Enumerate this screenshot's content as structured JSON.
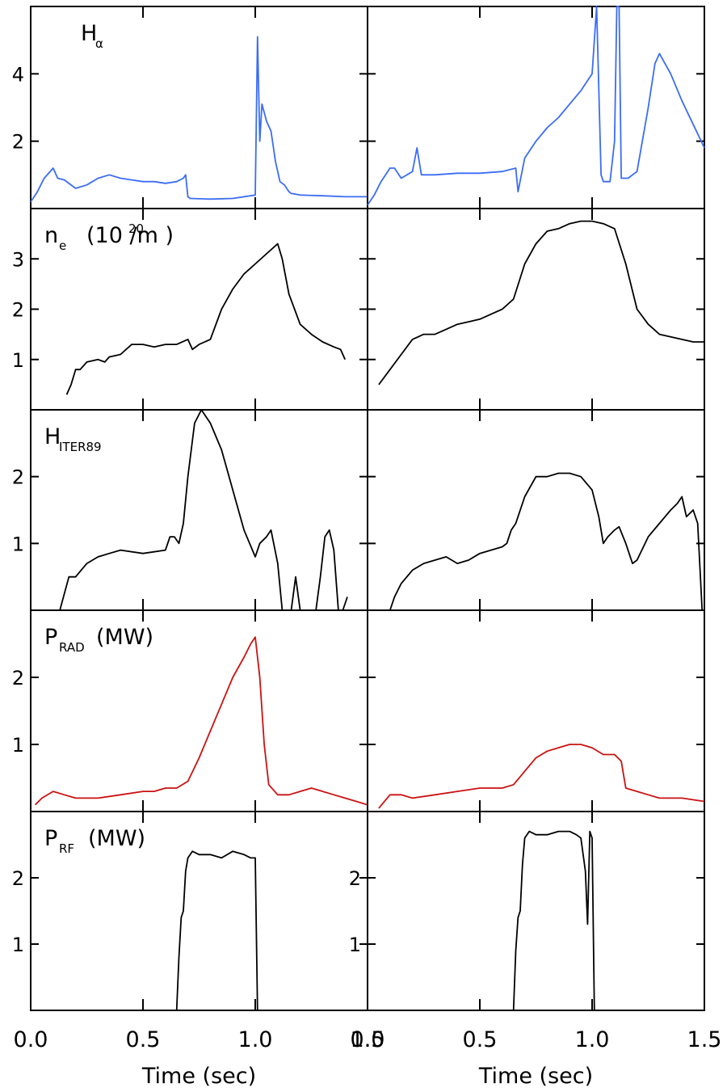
{
  "chart_data": {
    "type": "line",
    "layout": "5 rows x 2 columns, shared x axis per column",
    "x_range": [
      0.0,
      1.5
    ],
    "x_ticks": [
      "0.0",
      "0.5",
      "1.0",
      "1.5"
    ],
    "x_axis_title": "Time (sec)",
    "overlap_tick_label": "1.5",
    "rows": [
      {
        "id": "halpha",
        "label": "H",
        "subscript": "α",
        "superscript": "",
        "label_rest": "",
        "color": "#3b6cf5",
        "ylim": [
          0,
          6.0
        ],
        "yticks": [
          2,
          4
        ],
        "ytick_labels": [
          "2",
          "4"
        ],
        "left": {
          "x": [
            0.0,
            0.03,
            0.06,
            0.1,
            0.12,
            0.15,
            0.2,
            0.25,
            0.3,
            0.35,
            0.4,
            0.45,
            0.5,
            0.55,
            0.6,
            0.65,
            0.68,
            0.69,
            0.7,
            0.71,
            0.8,
            0.9,
            1.0,
            1.01,
            1.02,
            1.03,
            1.05,
            1.07,
            1.09,
            1.11,
            1.13,
            1.15,
            1.16,
            1.2,
            1.3,
            1.4,
            1.5
          ],
          "y": [
            0.2,
            0.5,
            0.9,
            1.2,
            0.9,
            0.85,
            0.6,
            0.7,
            0.9,
            1.0,
            0.9,
            0.85,
            0.8,
            0.8,
            0.75,
            0.8,
            0.9,
            1.0,
            0.35,
            0.3,
            0.28,
            0.3,
            0.4,
            5.1,
            2.0,
            3.1,
            2.6,
            2.3,
            1.4,
            0.8,
            0.7,
            0.5,
            0.45,
            0.4,
            0.38,
            0.35,
            0.35
          ]
        },
        "right": {
          "x": [
            0.0,
            0.03,
            0.06,
            0.1,
            0.12,
            0.15,
            0.2,
            0.22,
            0.24,
            0.27,
            0.3,
            0.4,
            0.5,
            0.6,
            0.66,
            0.67,
            0.7,
            0.75,
            0.8,
            0.85,
            0.9,
            0.95,
            1.0,
            1.02,
            1.04,
            1.05,
            1.08,
            1.1,
            1.11,
            1.12,
            1.13,
            1.16,
            1.2,
            1.25,
            1.28,
            1.3,
            1.35,
            1.4,
            1.45,
            1.5
          ],
          "y": [
            0.1,
            0.4,
            0.8,
            1.2,
            1.2,
            0.9,
            1.1,
            1.8,
            1.0,
            1.0,
            1.0,
            1.05,
            1.05,
            1.1,
            1.2,
            0.5,
            1.5,
            2.0,
            2.4,
            2.7,
            3.1,
            3.5,
            4.0,
            6.0,
            1.0,
            0.8,
            0.8,
            2.0,
            6.0,
            6.0,
            0.9,
            0.9,
            1.1,
            3.0,
            4.3,
            4.6,
            4.0,
            3.2,
            2.5,
            1.8
          ]
        }
      },
      {
        "id": "ne",
        "label": "n",
        "subscript": "e",
        "superscript": "20",
        "label_rest": "(10 /m )",
        "color": "#000000",
        "ylim": [
          0,
          4.0
        ],
        "yticks": [
          1,
          2,
          3
        ],
        "ytick_labels": [
          "1",
          "2",
          "3"
        ],
        "left": {
          "x": [
            0.16,
            0.18,
            0.2,
            0.22,
            0.25,
            0.3,
            0.33,
            0.35,
            0.4,
            0.45,
            0.5,
            0.55,
            0.6,
            0.65,
            0.7,
            0.72,
            0.75,
            0.8,
            0.85,
            0.9,
            0.95,
            1.0,
            1.05,
            1.1,
            1.12,
            1.15,
            1.2,
            1.25,
            1.3,
            1.35,
            1.38,
            1.4
          ],
          "y": [
            0.3,
            0.5,
            0.8,
            0.8,
            0.95,
            1.0,
            0.95,
            1.05,
            1.1,
            1.3,
            1.3,
            1.25,
            1.3,
            1.3,
            1.4,
            1.2,
            1.3,
            1.4,
            2.0,
            2.4,
            2.7,
            2.9,
            3.1,
            3.3,
            3.0,
            2.3,
            1.7,
            1.5,
            1.35,
            1.25,
            1.2,
            1.0
          ]
        },
        "right": {
          "x": [
            0.05,
            0.1,
            0.15,
            0.2,
            0.25,
            0.3,
            0.35,
            0.4,
            0.45,
            0.5,
            0.55,
            0.6,
            0.65,
            0.7,
            0.75,
            0.8,
            0.85,
            0.9,
            0.95,
            1.0,
            1.05,
            1.1,
            1.15,
            1.2,
            1.25,
            1.3,
            1.35,
            1.4,
            1.45,
            1.5
          ],
          "y": [
            0.5,
            0.8,
            1.1,
            1.4,
            1.5,
            1.5,
            1.6,
            1.7,
            1.75,
            1.8,
            1.9,
            2.0,
            2.2,
            2.9,
            3.3,
            3.55,
            3.6,
            3.7,
            3.75,
            3.75,
            3.7,
            3.6,
            2.9,
            2.0,
            1.7,
            1.5,
            1.45,
            1.4,
            1.35,
            1.35
          ]
        }
      },
      {
        "id": "hiter",
        "label": "H",
        "subscript": "ITER89",
        "superscript": "",
        "label_rest": "",
        "color": "#000000",
        "ylim": [
          0,
          3.0
        ],
        "yticks": [
          1,
          2
        ],
        "ytick_labels": [
          "1",
          "2"
        ],
        "left": {
          "x": [
            0.13,
            0.17,
            0.2,
            0.25,
            0.3,
            0.35,
            0.4,
            0.5,
            0.6,
            0.62,
            0.64,
            0.66,
            0.68,
            0.7,
            0.73,
            0.76,
            0.8,
            0.85,
            0.9,
            0.95,
            1.0,
            1.02,
            1.05,
            1.07,
            1.1,
            1.12,
            1.14,
            1.16,
            1.18,
            1.2,
            1.22,
            1.25,
            1.27,
            1.29,
            1.31,
            1.33,
            1.35,
            1.37,
            1.39,
            1.41
          ],
          "y": [
            0.0,
            0.5,
            0.5,
            0.7,
            0.8,
            0.85,
            0.9,
            0.85,
            0.9,
            1.1,
            1.1,
            1.0,
            1.3,
            2.0,
            2.8,
            3.0,
            2.8,
            2.4,
            1.8,
            1.2,
            0.8,
            1.0,
            1.1,
            1.2,
            0.7,
            0.0,
            0.0,
            0.0,
            0.5,
            0.0,
            0.0,
            0.0,
            0.0,
            0.5,
            1.1,
            1.2,
            0.9,
            0.0,
            0.0,
            0.2
          ]
        },
        "right": {
          "x": [
            0.1,
            0.12,
            0.15,
            0.2,
            0.25,
            0.3,
            0.35,
            0.4,
            0.45,
            0.5,
            0.55,
            0.6,
            0.62,
            0.64,
            0.66,
            0.7,
            0.75,
            0.8,
            0.85,
            0.9,
            0.95,
            1.0,
            1.03,
            1.05,
            1.07,
            1.1,
            1.12,
            1.15,
            1.18,
            1.2,
            1.25,
            1.3,
            1.35,
            1.38,
            1.4,
            1.42,
            1.45,
            1.47,
            1.49
          ],
          "y": [
            0.0,
            0.2,
            0.4,
            0.6,
            0.7,
            0.75,
            0.8,
            0.7,
            0.75,
            0.85,
            0.9,
            0.95,
            1.0,
            1.2,
            1.3,
            1.7,
            2.0,
            2.0,
            2.05,
            2.05,
            2.0,
            1.8,
            1.4,
            1.0,
            1.1,
            1.2,
            1.25,
            1.0,
            0.7,
            0.75,
            1.1,
            1.3,
            1.5,
            1.6,
            1.7,
            1.4,
            1.5,
            1.3,
            0.0
          ]
        }
      },
      {
        "id": "prad",
        "label": "P",
        "subscript": "RAD",
        "superscript": "",
        "label_rest": "(MW)",
        "color": "#cc1111",
        "ylim": [
          0,
          3.0
        ],
        "yticks": [
          1,
          2
        ],
        "ytick_labels": [
          "1",
          "2"
        ],
        "left": {
          "x": [
            0.02,
            0.05,
            0.1,
            0.15,
            0.2,
            0.3,
            0.4,
            0.5,
            0.55,
            0.6,
            0.65,
            0.7,
            0.75,
            0.8,
            0.85,
            0.9,
            0.95,
            0.98,
            1.0,
            1.02,
            1.04,
            1.06,
            1.1,
            1.15,
            1.2,
            1.25,
            1.3,
            1.35,
            1.4,
            1.45,
            1.5
          ],
          "y": [
            0.1,
            0.2,
            0.3,
            0.25,
            0.2,
            0.2,
            0.25,
            0.3,
            0.3,
            0.35,
            0.35,
            0.45,
            0.8,
            1.2,
            1.6,
            2.0,
            2.3,
            2.5,
            2.6,
            2.0,
            1.0,
            0.4,
            0.25,
            0.25,
            0.3,
            0.35,
            0.3,
            0.25,
            0.2,
            0.15,
            0.1
          ]
        },
        "right": {
          "x": [
            0.05,
            0.1,
            0.15,
            0.2,
            0.3,
            0.4,
            0.5,
            0.6,
            0.65,
            0.7,
            0.75,
            0.8,
            0.85,
            0.9,
            0.95,
            1.0,
            1.05,
            1.1,
            1.13,
            1.15,
            1.2,
            1.25,
            1.3,
            1.4,
            1.5
          ],
          "y": [
            0.05,
            0.25,
            0.25,
            0.2,
            0.25,
            0.3,
            0.35,
            0.35,
            0.4,
            0.6,
            0.8,
            0.9,
            0.95,
            1.0,
            1.0,
            0.95,
            0.85,
            0.85,
            0.75,
            0.35,
            0.3,
            0.25,
            0.2,
            0.2,
            0.15
          ]
        }
      },
      {
        "id": "prf",
        "label": "P",
        "subscript": "RF",
        "superscript": "",
        "label_rest": "(MW)",
        "color": "#000000",
        "ylim": [
          0,
          3.0
        ],
        "yticks": [
          1,
          2
        ],
        "ytick_labels": [
          "1",
          "2"
        ],
        "left": {
          "x": [
            0.65,
            0.66,
            0.67,
            0.68,
            0.69,
            0.7,
            0.72,
            0.75,
            0.8,
            0.85,
            0.9,
            0.95,
            0.98,
            0.99,
            1.0,
            1.01
          ],
          "y": [
            0.0,
            0.8,
            1.4,
            1.5,
            2.1,
            2.3,
            2.4,
            2.35,
            2.35,
            2.3,
            2.4,
            2.35,
            2.3,
            2.3,
            2.3,
            0.0
          ]
        },
        "right": {
          "x": [
            0.65,
            0.66,
            0.67,
            0.68,
            0.69,
            0.7,
            0.72,
            0.75,
            0.8,
            0.85,
            0.9,
            0.93,
            0.95,
            0.97,
            0.98,
            0.99,
            1.0,
            1.01
          ],
          "y": [
            0.0,
            0.9,
            1.4,
            1.5,
            2.2,
            2.6,
            2.7,
            2.65,
            2.65,
            2.7,
            2.7,
            2.65,
            2.6,
            2.1,
            1.3,
            2.7,
            2.6,
            0.0
          ]
        }
      }
    ]
  }
}
